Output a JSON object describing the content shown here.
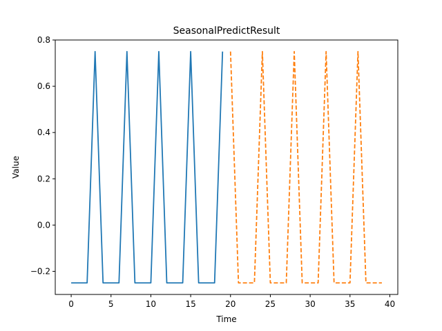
{
  "chart_data": {
    "type": "line",
    "title": "SeasonalPredictResult",
    "xlabel": "Time",
    "ylabel": "Value",
    "xlim": [
      -2,
      41
    ],
    "ylim": [
      -0.3,
      0.8
    ],
    "x_ticks": [
      0,
      5,
      10,
      15,
      20,
      25,
      30,
      35,
      40
    ],
    "y_ticks": [
      -0.2,
      0.0,
      0.2,
      0.4,
      0.6,
      0.8
    ],
    "x_tick_labels": [
      "0",
      "5",
      "10",
      "15",
      "20",
      "25",
      "30",
      "35",
      "40"
    ],
    "y_tick_labels": [
      "−0.2",
      "0.0",
      "0.2",
      "0.4",
      "0.6",
      "0.8"
    ],
    "grid": false,
    "legend": null,
    "series": [
      {
        "color": "#1f77b4",
        "dash": "solid",
        "x": [
          0,
          1,
          2,
          3,
          4,
          5,
          6,
          7,
          8,
          9,
          10,
          11,
          12,
          13,
          14,
          15,
          16,
          17,
          18,
          19
        ],
        "values": [
          -0.25,
          -0.25,
          -0.25,
          0.75,
          -0.25,
          -0.25,
          -0.25,
          0.75,
          -0.25,
          -0.25,
          -0.25,
          0.75,
          -0.25,
          -0.25,
          -0.25,
          0.75,
          -0.25,
          -0.25,
          -0.25,
          0.75
        ]
      },
      {
        "color": "#ff7f0e",
        "dash": "dashed",
        "x": [
          20,
          21,
          22,
          23,
          24,
          25,
          26,
          27,
          28,
          29,
          30,
          31,
          32,
          33,
          34,
          35,
          36,
          37,
          38,
          39
        ],
        "values": [
          0.75,
          -0.25,
          -0.25,
          -0.25,
          0.75,
          -0.25,
          -0.25,
          -0.25,
          0.75,
          -0.25,
          -0.25,
          -0.25,
          0.75,
          -0.25,
          -0.25,
          -0.25,
          0.75,
          -0.25,
          -0.25,
          -0.25
        ]
      }
    ]
  }
}
